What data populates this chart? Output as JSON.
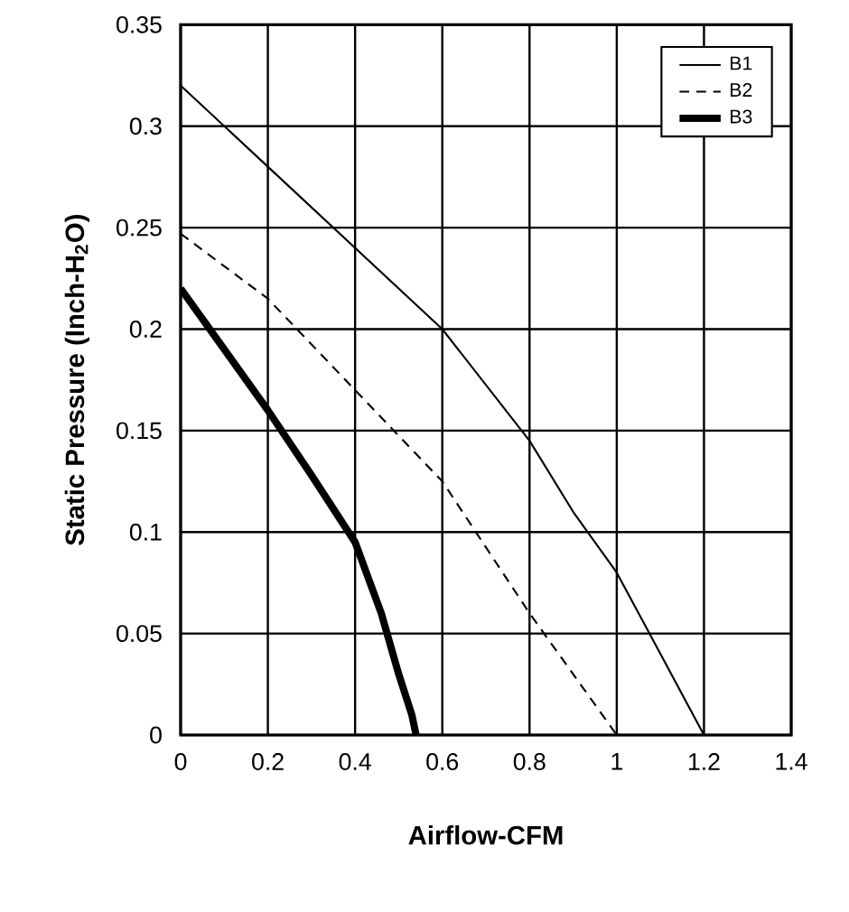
{
  "chart_data": {
    "type": "line",
    "xlabel": "Airflow-CFM",
    "ylabel": "Static Pressure (Inch-H$_{2}$O)",
    "xlim": [
      0,
      1.4
    ],
    "ylim": [
      0,
      0.35
    ],
    "xticks": [
      0,
      0.2,
      0.4,
      0.6,
      0.8,
      1,
      1.2,
      1.4
    ],
    "yticks": [
      0,
      0.05,
      0.1,
      0.15,
      0.2,
      0.25,
      0.3,
      0.35
    ],
    "grid": true,
    "legend": "top right",
    "marker": "none",
    "series": [
      {
        "name": "B1",
        "color": "#000000",
        "line_style": "solid",
        "x": [
          0,
          0.2,
          0.4,
          0.6,
          0.8,
          0.9,
          1.0,
          1.1,
          1.2
        ],
        "values": [
          0.32,
          0.28,
          0.24,
          0.2,
          0.145,
          0.11,
          0.08,
          0.04,
          0
        ]
      },
      {
        "name": "B2",
        "color": "#000000",
        "line_style": "dashed",
        "x": [
          0,
          0.2,
          0.4,
          0.6,
          0.8,
          0.9,
          1.0
        ],
        "values": [
          0.247,
          0.215,
          0.17,
          0.125,
          0.06,
          0.03,
          0
        ]
      },
      {
        "name": "B3",
        "color": "#000000",
        "line_style": "solid",
        "x": [
          0,
          0.1,
          0.2,
          0.3,
          0.4,
          0.46,
          0.5,
          0.53,
          0.54
        ],
        "values": [
          0.22,
          0.19,
          0.16,
          0.128,
          0.095,
          0.06,
          0.03,
          0.01,
          0
        ]
      }
    ]
  }
}
